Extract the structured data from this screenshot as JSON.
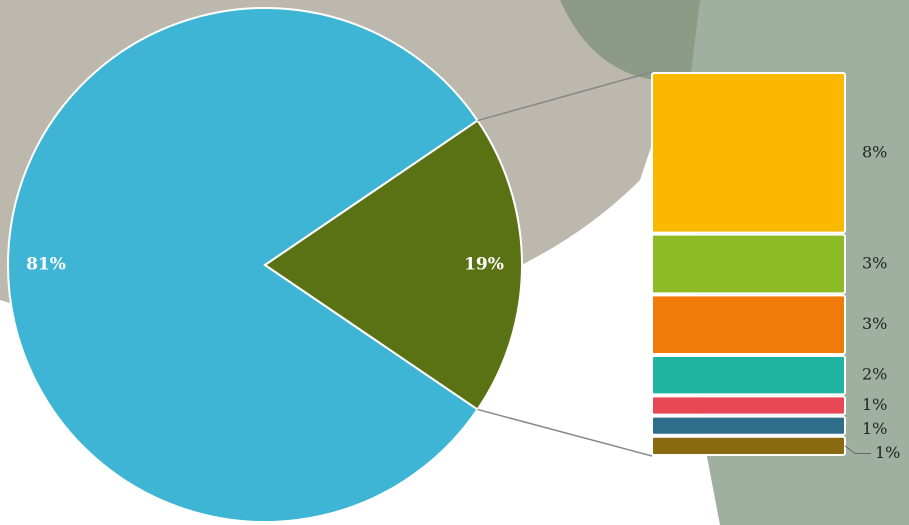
{
  "chart_data": {
    "type": "bar-of-pie",
    "pie": {
      "values": [
        81,
        19
      ],
      "value_labels": [
        "81%",
        "19%"
      ],
      "colors": [
        "#3fb5d6",
        "#5a7214"
      ]
    },
    "stack": {
      "values": [
        8,
        3,
        3,
        2,
        1,
        1,
        1
      ],
      "value_labels": [
        "8%",
        "3%",
        "3%",
        "2%",
        "1%",
        "1%",
        "1%"
      ],
      "colors": [
        "#fbb800",
        "#8dbb25",
        "#f07a0a",
        "#1fb4a0",
        "#e84856",
        "#2e6e8a",
        "#8a6a10"
      ]
    }
  }
}
